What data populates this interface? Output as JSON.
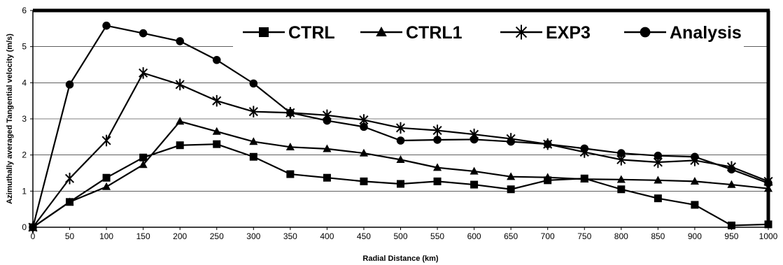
{
  "chart_data": {
    "type": "line",
    "title": "",
    "xlabel": "Radial Distance (km)",
    "ylabel": "Azimuthally averaged Tangential velocity (m/s)",
    "xlim": [
      0,
      1000
    ],
    "ylim": [
      0,
      6
    ],
    "x": [
      0,
      50,
      100,
      150,
      200,
      250,
      300,
      350,
      400,
      450,
      500,
      550,
      600,
      650,
      700,
      750,
      800,
      850,
      900,
      950,
      1000
    ],
    "x_ticks": [
      0,
      50,
      100,
      150,
      200,
      250,
      300,
      350,
      400,
      450,
      500,
      550,
      600,
      650,
      700,
      750,
      800,
      850,
      900,
      950,
      1000
    ],
    "y_ticks": [
      0,
      1,
      2,
      3,
      4,
      5,
      6
    ],
    "grid": true,
    "legend_position": "top-right",
    "series": [
      {
        "name": "CTRL",
        "marker": "square",
        "values": [
          0,
          0.7,
          1.37,
          1.93,
          2.27,
          2.3,
          1.95,
          1.47,
          1.37,
          1.27,
          1.2,
          1.27,
          1.18,
          1.05,
          1.3,
          1.35,
          1.05,
          0.8,
          0.62,
          0.05,
          0.08
        ]
      },
      {
        "name": "CTRL1",
        "marker": "triangle",
        "values": [
          0,
          0.7,
          1.12,
          1.73,
          2.93,
          2.65,
          2.37,
          2.22,
          2.17,
          2.05,
          1.87,
          1.65,
          1.55,
          1.4,
          1.38,
          1.33,
          1.32,
          1.3,
          1.27,
          1.18,
          1.07
        ]
      },
      {
        "name": "EXP3",
        "marker": "asterisk",
        "values": [
          0,
          1.35,
          2.4,
          4.27,
          3.95,
          3.5,
          3.2,
          3.17,
          3.1,
          2.97,
          2.75,
          2.68,
          2.57,
          2.45,
          2.3,
          2.08,
          1.87,
          1.8,
          1.85,
          1.67,
          1.27
        ]
      },
      {
        "name": "Analysis",
        "marker": "circle",
        "values": [
          0,
          3.95,
          5.58,
          5.37,
          5.15,
          4.63,
          3.98,
          3.17,
          2.95,
          2.78,
          2.4,
          2.42,
          2.43,
          2.37,
          2.3,
          2.18,
          2.05,
          1.98,
          1.95,
          1.6,
          1.22
        ]
      }
    ]
  }
}
